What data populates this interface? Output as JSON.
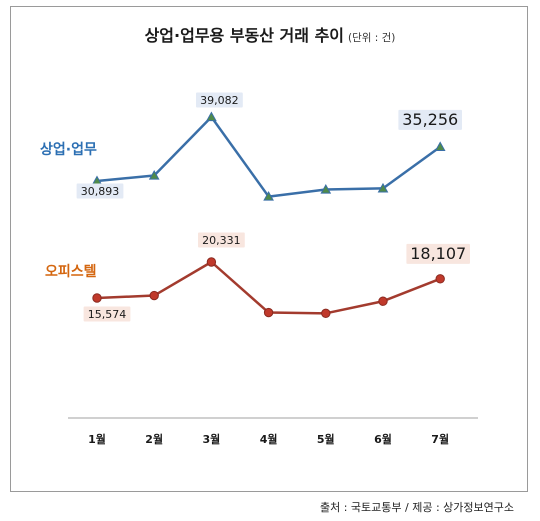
{
  "chart_data": {
    "type": "line",
    "title": "상업·업무용 부동산 거래 추이",
    "title_unit": "(단위 : 건)",
    "categories": [
      "1월",
      "2월",
      "3월",
      "4월",
      "5월",
      "6월",
      "7월"
    ],
    "series": [
      {
        "name": "상업·업무",
        "color": "#3a6fa8",
        "marker_color": "#4f8a4a",
        "values": [
          30893,
          31600,
          39082,
          28900,
          29800,
          29950,
          35256
        ],
        "data_labels": {
          "0": "30,893",
          "2": "39,082",
          "6": "35,256"
        }
      },
      {
        "name": "오피스텔",
        "color": "#a33b2e",
        "marker_color": "#c0392b",
        "values": [
          15574,
          15900,
          20331,
          13650,
          13550,
          15150,
          18107
        ],
        "data_labels": {
          "0": "15,574",
          "2": "20,331",
          "6": "18,107"
        }
      }
    ],
    "grid": false,
    "legend": "inline-left"
  },
  "source": "출처 : 국토교통부 / 제공 : 상가정보연구소",
  "colors": {
    "label_bg_blue": "#e3eaf5",
    "label_bg_red": "#f8e6df",
    "series_label_blue": "#2c6fb3",
    "series_label_red": "#d4660f"
  }
}
